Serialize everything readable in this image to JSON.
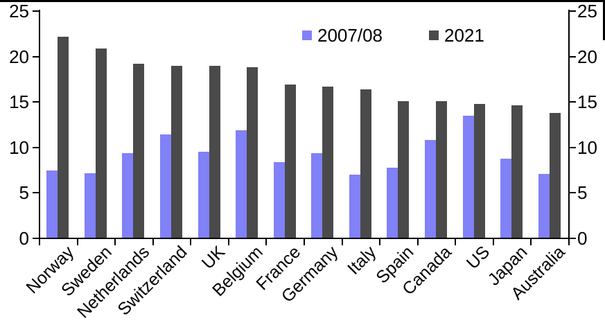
{
  "chart_data": {
    "type": "bar",
    "title": "",
    "xlabel": "",
    "ylabel": "",
    "categories": [
      "Norway",
      "Sweden",
      "Netherlands",
      "Switzerland",
      "UK",
      "Belgium",
      "France",
      "Germany",
      "Italy",
      "Spain",
      "Canada",
      "US",
      "Japan",
      "Australia"
    ],
    "series": [
      {
        "name": "2007/08",
        "color": "#8181f8",
        "values": [
          7.5,
          7.2,
          9.4,
          11.4,
          9.5,
          11.9,
          8.4,
          9.4,
          7.0,
          7.8,
          10.8,
          13.5,
          8.8,
          7.1
        ]
      },
      {
        "name": "2021",
        "color": "#4a4a4a",
        "values": [
          22.2,
          20.9,
          19.2,
          19.0,
          19.0,
          18.8,
          16.9,
          16.7,
          16.4,
          15.1,
          15.1,
          14.8,
          14.6,
          13.8
        ]
      }
    ],
    "ylim": [
      0,
      25
    ],
    "yticks": [
      0,
      5,
      10,
      15,
      20,
      25
    ],
    "dual_axis": true,
    "grid": false,
    "legend_position": "top-center",
    "x_tick_rotation_deg": -45
  },
  "colors": {
    "background": "#ffffff",
    "axis": "#000000",
    "frame_border": "#000000",
    "series_2007_08": "#8181f8",
    "series_2021": "#4a4a4a"
  }
}
